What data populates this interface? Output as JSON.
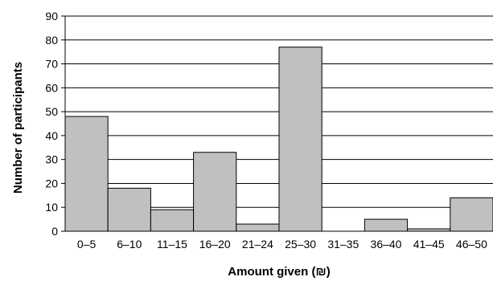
{
  "chart_data": {
    "type": "bar",
    "title": "",
    "xlabel": "Amount given (₪)",
    "ylabel": "Number of participants",
    "categories": [
      "0–5",
      "6–10",
      "11–15",
      "16–20",
      "21–24",
      "25–30",
      "31–35",
      "36–40",
      "41–45",
      "46–50"
    ],
    "values": [
      48,
      18,
      9,
      33,
      3,
      77,
      0,
      5,
      1,
      14
    ],
    "ylim": [
      0,
      90
    ],
    "yticks": [
      0,
      10,
      20,
      30,
      40,
      50,
      60,
      70,
      80,
      90
    ],
    "grid": true,
    "bar_color": "#c0c0c0",
    "edge_color": "#000000"
  }
}
